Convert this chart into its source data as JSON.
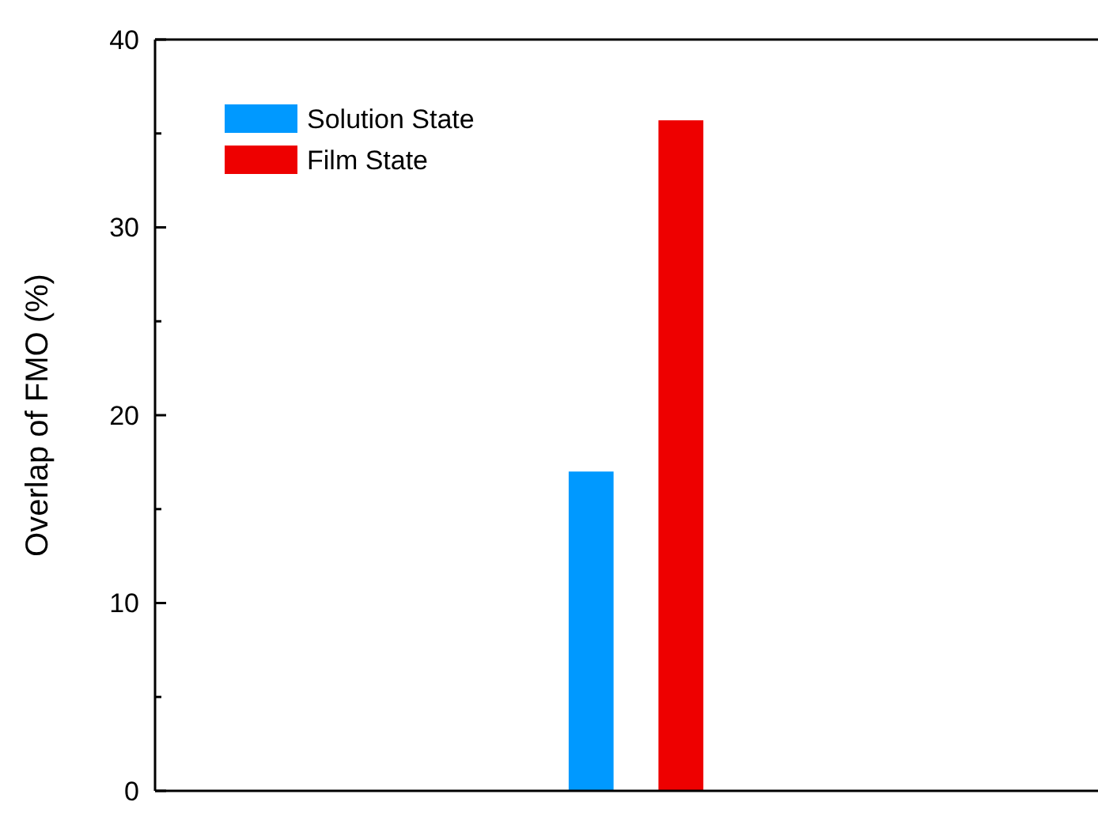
{
  "chart_data": {
    "type": "bar",
    "ylabel": "Overlap of FMO (%)",
    "categories": [
      null
    ],
    "series": [
      {
        "name": "Solution State",
        "color": "#0099ff",
        "values": [
          17.0
        ]
      },
      {
        "name": "Film State",
        "color": "#ee0000",
        "values": [
          35.7
        ]
      }
    ],
    "ylim": [
      0,
      40
    ],
    "yticks": [
      0,
      {
        "value": 5,
        "label": null
      },
      10,
      {
        "value": 15,
        "label": null
      },
      20,
      {
        "value": 25,
        "label": null
      },
      30,
      {
        "value": 35,
        "label": null
      },
      40
    ],
    "legend": "top left",
    "grid": false
  }
}
